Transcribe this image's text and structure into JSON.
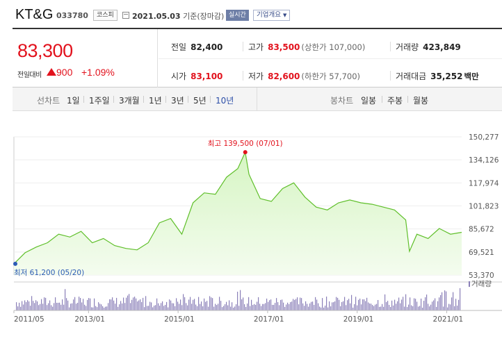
{
  "header": {
    "name": "KT&G",
    "code": "033780",
    "market": "코스피",
    "date": "2021.05.03",
    "date_suffix": "기준(장마감)",
    "realtime_label": "실시간",
    "overview_label": "기업개요",
    "overview_icon": "triangle-down-icon"
  },
  "quote": {
    "price": "83,300",
    "change_label": "전일대비",
    "change_direction": "up",
    "change_value": "900",
    "change_percent": "+1.09%",
    "prev_close_label": "전일",
    "prev_close": "82,400",
    "high_label": "고가",
    "high": "83,500",
    "upper_limit": "(상한가 107,000)",
    "volume_label": "거래량",
    "volume": "423,849",
    "open_label": "시가",
    "open": "83,100",
    "low_label": "저가",
    "low": "82,600",
    "lower_limit": "(하한가 57,700)",
    "turnover_label": "거래대금",
    "turnover": "35,252",
    "turnover_unit": "백만"
  },
  "toolbar": {
    "line_chart_label": "선차트",
    "periods": [
      "1일",
      "1주일",
      "3개월",
      "1년",
      "3년",
      "5년",
      "10년"
    ],
    "active_period": "10년",
    "candle_chart_label": "봉차트",
    "candle_periods": [
      "일봉",
      "주봉",
      "월봉"
    ]
  },
  "chart_data": {
    "type": "area",
    "title": "",
    "x_ticks": [
      "2011/05",
      "2013/01",
      "2015/01",
      "2017/01",
      "2019/01",
      "2021/01"
    ],
    "y_ticks": [
      "150,277",
      "134,126",
      "117,974",
      "101,823",
      "85,672",
      "69,521",
      "53,370"
    ],
    "ylim": [
      53370,
      150277
    ],
    "x_range": [
      "2011/05",
      "2021/05"
    ],
    "high_annotation": "최고 139,500 (07/01)",
    "low_annotation": "최저 61,200 (05/20)",
    "volume_label": "거래량",
    "x": [
      "2011/05",
      "2011/08",
      "2011/11",
      "2012/02",
      "2012/05",
      "2012/08",
      "2012/11",
      "2013/02",
      "2013/05",
      "2013/08",
      "2013/11",
      "2014/02",
      "2014/05",
      "2014/08",
      "2014/11",
      "2015/02",
      "2015/05",
      "2015/08",
      "2015/11",
      "2016/02",
      "2016/05",
      "2016/07",
      "2016/08",
      "2016/11",
      "2017/02",
      "2017/05",
      "2017/08",
      "2017/11",
      "2018/02",
      "2018/05",
      "2018/08",
      "2018/11",
      "2019/02",
      "2019/05",
      "2019/08",
      "2019/11",
      "2020/02",
      "2020/03",
      "2020/05",
      "2020/08",
      "2020/11",
      "2021/02",
      "2021/05"
    ],
    "y": [
      61200,
      69000,
      73000,
      76000,
      82000,
      80000,
      84000,
      76000,
      79000,
      74000,
      72000,
      71000,
      76000,
      90000,
      93000,
      82000,
      104000,
      111000,
      110000,
      122000,
      128000,
      139500,
      124000,
      107000,
      105000,
      114000,
      118000,
      108000,
      101000,
      99000,
      104000,
      106000,
      104000,
      103000,
      101000,
      99000,
      92000,
      70000,
      82000,
      79000,
      86000,
      82000,
      83300
    ],
    "grid": true,
    "fill_color": "#d6f5c3",
    "line_color": "#5fbf2a",
    "volume_color": "#8a7fb8",
    "high_color": "#e2121d",
    "low_color": "#2c5bb5"
  }
}
